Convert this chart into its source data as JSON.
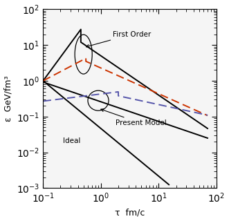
{
  "xlim": [
    0.1,
    100
  ],
  "ylim": [
    0.001,
    100
  ],
  "xlabel": "τ  fm/c",
  "ylabel": "ε  GeV/fm³",
  "label_first_order": "First Order",
  "label_present_model": "Present Model",
  "label_ideal": "Ideal",
  "figsize": [
    3.31,
    3.2
  ],
  "dpi": 100,
  "curve_lw": 1.4
}
